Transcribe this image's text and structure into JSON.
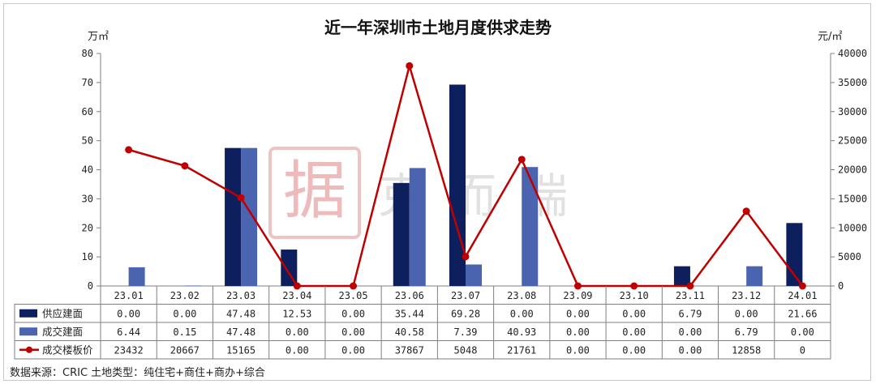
{
  "chart_data": {
    "type": "bar",
    "title": "近一年深圳市土地月度供求走势",
    "y_left_unit": "万㎡",
    "y_right_unit": "元/㎡",
    "ylim_left": [
      0,
      80
    ],
    "ylim_right": [
      0,
      40000
    ],
    "yticks_left": [
      "0",
      "10",
      "20",
      "30",
      "40",
      "50",
      "60",
      "70",
      "80"
    ],
    "yticks_right": [
      "0",
      "5000",
      "10000",
      "15000",
      "20000",
      "25000",
      "30000",
      "35000",
      "40000"
    ],
    "categories": [
      "23.01",
      "23.02",
      "23.03",
      "23.04",
      "23.05",
      "23.06",
      "23.07",
      "23.08",
      "23.09",
      "23.10",
      "23.11",
      "23.12",
      "24.01"
    ],
    "series": [
      {
        "name": "供应建面",
        "kind": "bar",
        "axis": "left",
        "color": "#0d1f5c",
        "values": [
          0.0,
          0.0,
          47.48,
          12.53,
          0.0,
          35.44,
          69.28,
          0.0,
          0.0,
          0.0,
          6.79,
          0.0,
          21.66
        ],
        "labels": [
          "0.00",
          "0.00",
          "47.48",
          "12.53",
          "0.00",
          "35.44",
          "69.28",
          "0.00",
          "0.00",
          "0.00",
          "6.79",
          "0.00",
          "21.66"
        ]
      },
      {
        "name": "成交建面",
        "kind": "bar",
        "axis": "left",
        "color": "#4a64b0",
        "values": [
          6.44,
          0.15,
          47.48,
          0.0,
          0.0,
          40.58,
          7.39,
          40.93,
          0.0,
          0.0,
          0.0,
          6.79,
          0.0
        ],
        "labels": [
          "6.44",
          "0.15",
          "47.48",
          "0.00",
          "0.00",
          "40.58",
          "7.39",
          "40.93",
          "0.00",
          "0.00",
          "0.00",
          "6.79",
          "0.00"
        ]
      },
      {
        "name": "成交楼板价",
        "kind": "line",
        "axis": "right",
        "color": "#c00000",
        "values": [
          23432,
          20667,
          15165,
          0,
          0,
          37867,
          5048,
          21761,
          0,
          0,
          0,
          12858,
          0
        ],
        "labels": [
          "23432",
          "20667",
          "15165",
          "0.00",
          "0.00",
          "37867",
          "5048",
          "21761",
          "0.00",
          "0.00",
          "0.00",
          "12858",
          "0"
        ]
      }
    ],
    "grid": false,
    "legend": "table-bottom"
  },
  "source_note": "数据来源：CRIC 土地类型：纯住宅+商住+商办+综合",
  "watermark": {
    "text": "克而瑞",
    "seal_char": "据"
  }
}
